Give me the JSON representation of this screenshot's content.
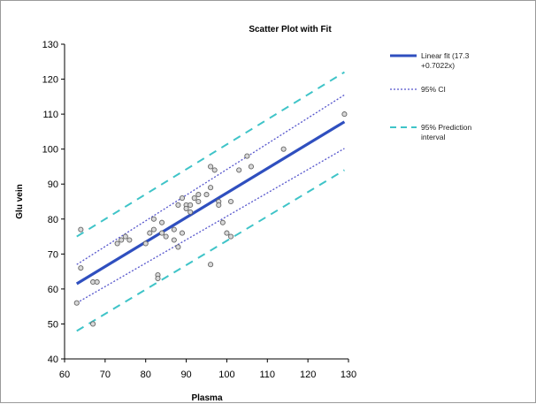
{
  "chart_data": {
    "type": "scatter",
    "title": "Scatter Plot with Fit",
    "xlabel": "Plasma",
    "ylabel": "Glu vein",
    "xlim": [
      60,
      130
    ],
    "ylim": [
      40,
      130
    ],
    "xticks": [
      "60",
      "70",
      "80",
      "90",
      "100",
      "110",
      "120",
      "130"
    ],
    "yticks": [
      "40",
      "50",
      "60",
      "70",
      "80",
      "90",
      "100",
      "110",
      "120",
      "130"
    ],
    "grid": false,
    "legend_position": "right",
    "series": [
      {
        "kind": "points",
        "x": [
          63,
          64,
          64,
          67,
          67,
          68,
          73,
          74,
          75,
          76,
          80,
          81,
          82,
          82,
          83,
          83,
          84,
          84,
          85,
          87,
          87,
          88,
          88,
          89,
          89,
          90,
          90,
          91,
          91,
          92,
          93,
          93,
          95,
          96,
          96,
          96,
          97,
          98,
          98,
          99,
          100,
          101,
          101,
          103,
          105,
          106,
          114,
          129
        ],
        "y": [
          56,
          66,
          77,
          62,
          50,
          62,
          73,
          74,
          75,
          74,
          73,
          76,
          77,
          80,
          64,
          63,
          79,
          76,
          75,
          77,
          74,
          72,
          84,
          86,
          76,
          84,
          83,
          82,
          84,
          86,
          87,
          85,
          87,
          95,
          89,
          67,
          94,
          85,
          84,
          79,
          76,
          75,
          85,
          94,
          98,
          95,
          100,
          110
        ]
      },
      {
        "name": "Linear fit (17.3 +0.7022x)",
        "kind": "line",
        "color": "#2f4fbf",
        "x": [
          63,
          129
        ],
        "y": [
          61.5,
          107.8
        ]
      },
      {
        "name": "95% CI",
        "kind": "band",
        "color": "#5555cc",
        "x": [
          63,
          129
        ],
        "upper": [
          67.0,
          115.5
        ],
        "lower": [
          56.0,
          100.2
        ]
      },
      {
        "name": "95% Prediction interval",
        "kind": "band",
        "color": "#3fc4c8",
        "x": [
          63,
          129
        ],
        "upper": [
          75.0,
          122.0
        ],
        "lower": [
          48.0,
          94.0
        ]
      }
    ],
    "legend": [
      {
        "label_line1": "Linear fit (17.3",
        "label_line2": "+0.7022x)",
        "style": "solid",
        "color": "#2f4fbf"
      },
      {
        "label_line1": "95% CI",
        "label_line2": "",
        "style": "dotted",
        "color": "#5555cc"
      },
      {
        "label_line1": "95% Prediction",
        "label_line2": "interval",
        "style": "dashed",
        "color": "#3fc4c8"
      }
    ]
  }
}
